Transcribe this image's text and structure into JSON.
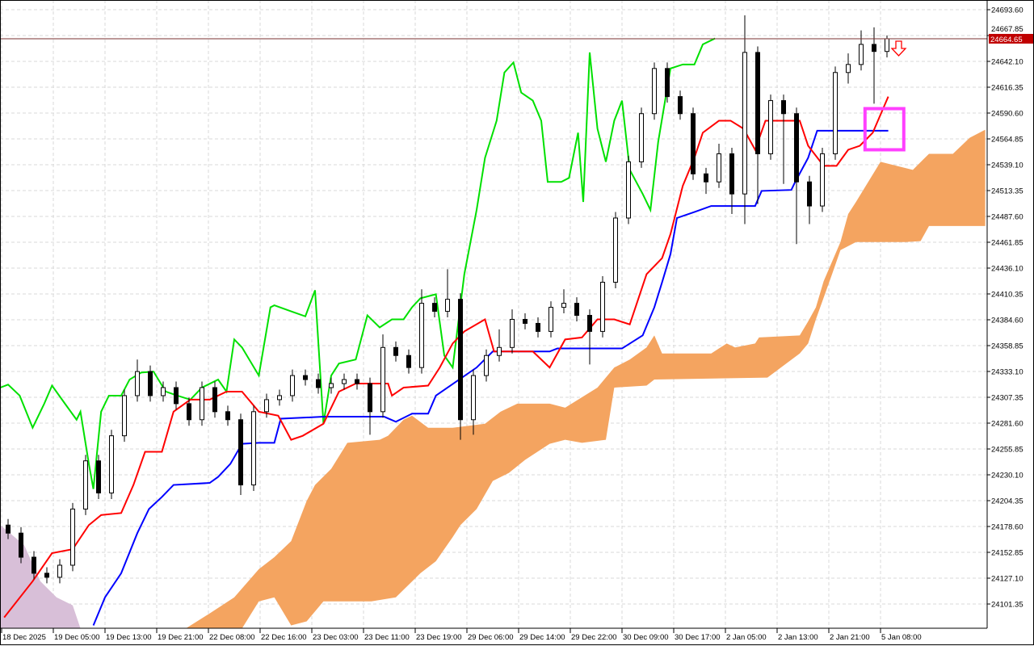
{
  "chart_data": {
    "type": "candlestick",
    "symbol_price_label": "24664.65",
    "price_line_value": 24664.65,
    "y_ticks": [
      "24693.60",
      "24667.85",
      "24642.10",
      "24616.35",
      "24590.60",
      "24564.85",
      "24539.10",
      "24513.35",
      "24487.60",
      "24461.85",
      "24436.10",
      "24410.35",
      "24384.60",
      "24358.85",
      "24333.10",
      "24307.35",
      "24281.60",
      "24255.85",
      "24230.10",
      "24204.35",
      "24178.60",
      "24152.85",
      "24127.10",
      "24101.35"
    ],
    "x_ticks": [
      "18 Dec 2025",
      "19 Dec 05:00",
      "19 Dec 13:00",
      "19 Dec 21:00",
      "22 Dec 08:00",
      "22 Dec 16:00",
      "23 Dec 03:00",
      "23 Dec 11:00",
      "23 Dec 19:00",
      "29 Dec 06:00",
      "29 Dec 14:00",
      "29 Dec 22:00",
      "30 Dec 09:00",
      "30 Dec 17:00",
      "2 Jan 05:00",
      "2 Jan 13:00",
      "2 Jan 21:00",
      "5 Jan 08:00"
    ],
    "ylim": [
      24077,
      24704
    ],
    "grid": true,
    "colors": {
      "bull_fill": "#ffffff",
      "bear_fill": "#000000",
      "tenkan": "#ff0000",
      "kijun": "#0000ff",
      "chikou": "#00e000",
      "cloud_bull": "#f4a460",
      "cloud_bear": "#d8bfd8",
      "price_label_bg": "#c00000",
      "highlight_box": "#ff40ff",
      "signal_arrow": "#ff0000"
    },
    "candles_ohlc": [
      [
        24180,
        24186,
        24166,
        24172
      ],
      [
        24172,
        24178,
        24142,
        24148
      ],
      [
        24148,
        24154,
        24126,
        24132
      ],
      [
        24132,
        24138,
        24122,
        24128
      ],
      [
        24128,
        24146,
        24122,
        24140
      ],
      [
        24140,
        24202,
        24134,
        24196
      ],
      [
        24196,
        24250,
        24190,
        24244
      ],
      [
        24244,
        24250,
        24206,
        24212
      ],
      [
        24212,
        24275,
        24206,
        24269
      ],
      [
        24269,
        24315,
        24263,
        24309
      ],
      [
        24309,
        24345,
        24303,
        24333
      ],
      [
        24333,
        24339,
        24303,
        24309
      ],
      [
        24309,
        24323,
        24303,
        24317
      ],
      [
        24317,
        24323,
        24295,
        24301
      ],
      [
        24301,
        24307,
        24279,
        24285
      ],
      [
        24285,
        24323,
        24279,
        24317
      ],
      [
        24317,
        24323,
        24287,
        24293
      ],
      [
        24293,
        24299,
        24279,
        24285
      ],
      [
        24285,
        24291,
        24210,
        24220
      ],
      [
        24220,
        24299,
        24214,
        24293
      ],
      [
        24293,
        24311,
        24287,
        24305
      ],
      [
        24305,
        24315,
        24299,
        24309
      ],
      [
        24309,
        24335,
        24303,
        24329
      ],
      [
        24329,
        24335,
        24319,
        24325
      ],
      [
        24325,
        24331,
        24311,
        24317
      ],
      [
        24317,
        24327,
        24311,
        24321
      ],
      [
        24321,
        24331,
        24315,
        24325
      ],
      [
        24325,
        24331,
        24315,
        24321
      ],
      [
        24321,
        24327,
        24270,
        24293
      ],
      [
        24293,
        24370,
        24287,
        24357
      ],
      [
        24357,
        24363,
        24343,
        24349
      ],
      [
        24349,
        24355,
        24331,
        24337
      ],
      [
        24337,
        24415,
        24331,
        24401
      ],
      [
        24401,
        24407,
        24387,
        24393
      ],
      [
        24393,
        24435,
        24387,
        24405
      ],
      [
        24405,
        24411,
        24265,
        24285
      ],
      [
        24285,
        24335,
        24270,
        24329
      ],
      [
        24329,
        24355,
        24323,
        24349
      ],
      [
        24349,
        24375,
        24343,
        24357
      ],
      [
        24357,
        24395,
        24351,
        24385
      ],
      [
        24385,
        24391,
        24375,
        24381
      ],
      [
        24381,
        24387,
        24367,
        24373
      ],
      [
        24373,
        24403,
        24367,
        24397
      ],
      [
        24397,
        24415,
        24391,
        24401
      ],
      [
        24401,
        24407,
        24383,
        24389
      ],
      [
        24389,
        24395,
        24340,
        24373
      ],
      [
        24373,
        24428,
        24367,
        24422
      ],
      [
        24422,
        24492,
        24416,
        24486
      ],
      [
        24486,
        24548,
        24480,
        24542
      ],
      [
        24542,
        24596,
        24536,
        24590
      ],
      [
        24590,
        24641,
        24584,
        24635
      ],
      [
        24635,
        24641,
        24601,
        24607
      ],
      [
        24607,
        24613,
        24584,
        24590
      ],
      [
        24590,
        24596,
        24524,
        24530
      ],
      [
        24530,
        24536,
        24510,
        24522
      ],
      [
        24522,
        24560,
        24516,
        24550
      ],
      [
        24550,
        24556,
        24490,
        24510
      ],
      [
        24510,
        24688,
        24480,
        24651
      ],
      [
        24651,
        24657,
        24500,
        24550
      ],
      [
        24550,
        24609,
        24544,
        24603
      ],
      [
        24603,
        24609,
        24520,
        24590
      ],
      [
        24590,
        24596,
        24460,
        24522
      ],
      [
        24522,
        24528,
        24480,
        24498
      ],
      [
        24498,
        24556,
        24492,
        24550
      ],
      [
        24550,
        24637,
        24544,
        24631
      ],
      [
        24631,
        24650,
        24620,
        24639
      ],
      [
        24639,
        24673,
        24633,
        24659
      ],
      [
        24659,
        24676,
        24600,
        24652
      ],
      [
        24652,
        24668,
        24646,
        24664.65
      ]
    ],
    "tenkan_sen": [
      [
        -0.3,
        24088
      ],
      [
        1.9,
        24124
      ],
      [
        3.4,
        24152
      ],
      [
        5,
        24156
      ],
      [
        6.25,
        24180
      ],
      [
        7.2,
        24190
      ],
      [
        8.75,
        24192
      ],
      [
        9.7,
        24220
      ],
      [
        10.6,
        24253
      ],
      [
        11.9,
        24253
      ],
      [
        12.8,
        24293
      ],
      [
        14.1,
        24305
      ],
      [
        15.6,
        24305
      ],
      [
        16.9,
        24313
      ],
      [
        18.1,
        24313
      ],
      [
        19.4,
        24293
      ],
      [
        20.9,
        24289
      ],
      [
        21.9,
        24265
      ],
      [
        22.8,
        24269
      ],
      [
        24.4,
        24281
      ],
      [
        25.6,
        24313
      ],
      [
        26.9,
        24321
      ],
      [
        29.4,
        24321
      ],
      [
        29.7,
        24309
      ],
      [
        30.6,
        24317
      ],
      [
        32.5,
        24319
      ],
      [
        33.4,
        24337
      ],
      [
        34.4,
        24361
      ],
      [
        35.3,
        24373
      ],
      [
        36.9,
        24385
      ],
      [
        37.6,
        24353
      ],
      [
        40.6,
        24353
      ],
      [
        41.9,
        24337
      ],
      [
        43.1,
        24365
      ],
      [
        44.4,
        24367
      ],
      [
        45.6,
        24385
      ],
      [
        46.9,
        24385
      ],
      [
        48.1,
        24380
      ],
      [
        49.4,
        24430
      ],
      [
        50.6,
        24446
      ],
      [
        51.25,
        24470
      ],
      [
        52.2,
        24518
      ],
      [
        53.1,
        24546
      ],
      [
        53.75,
        24571
      ],
      [
        55,
        24583
      ],
      [
        55.9,
        24583
      ],
      [
        56.9,
        24575
      ],
      [
        57.8,
        24554
      ],
      [
        58.6,
        24583
      ],
      [
        61.25,
        24583
      ],
      [
        61.9,
        24558
      ],
      [
        63.1,
        24538
      ],
      [
        64.1,
        24538
      ],
      [
        65,
        24554
      ],
      [
        65.9,
        24558
      ],
      [
        66.9,
        24571
      ],
      [
        68.1,
        24607
      ]
    ],
    "kijun_sen": [
      [
        6.6,
        24080
      ],
      [
        7.5,
        24108
      ],
      [
        8.75,
        24132
      ],
      [
        10,
        24172
      ],
      [
        10.9,
        24196
      ],
      [
        11.9,
        24208
      ],
      [
        12.8,
        24220
      ],
      [
        15.6,
        24222
      ],
      [
        16.25,
        24228
      ],
      [
        17.2,
        24241
      ],
      [
        18.1,
        24261
      ],
      [
        19.4,
        24262
      ],
      [
        20.6,
        24262
      ],
      [
        21.1,
        24286
      ],
      [
        24.4,
        24288
      ],
      [
        29.1,
        24288
      ],
      [
        30,
        24283
      ],
      [
        31.25,
        24291
      ],
      [
        32.5,
        24291
      ],
      [
        33.1,
        24309
      ],
      [
        36.25,
        24337
      ],
      [
        37.5,
        24353
      ],
      [
        41.9,
        24353
      ],
      [
        42.5,
        24356
      ],
      [
        47.5,
        24356
      ],
      [
        49.1,
        24369
      ],
      [
        50,
        24397
      ],
      [
        50.6,
        24422
      ],
      [
        51.25,
        24450
      ],
      [
        51.75,
        24486
      ],
      [
        53.1,
        24492
      ],
      [
        54.4,
        24498
      ],
      [
        57.8,
        24498
      ],
      [
        58.3,
        24513
      ],
      [
        60.6,
        24514
      ],
      [
        60.9,
        24522
      ],
      [
        61.9,
        24546
      ],
      [
        62.6,
        24573
      ],
      [
        68.1,
        24573
      ]
    ],
    "chikou_span": [
      [
        -0.6,
        24317
      ],
      [
        0,
        24320
      ],
      [
        0.9,
        24309
      ],
      [
        1.9,
        24277
      ],
      [
        2.8,
        24301
      ],
      [
        3.4,
        24319
      ],
      [
        4.4,
        24301
      ],
      [
        5.3,
        24285
      ],
      [
        5.6,
        24293
      ],
      [
        6.25,
        24241
      ],
      [
        6.6,
        24216
      ],
      [
        7.2,
        24293
      ],
      [
        7.8,
        24309
      ],
      [
        8.75,
        24309
      ],
      [
        9.4,
        24325
      ],
      [
        10.3,
        24332
      ],
      [
        11.25,
        24333
      ],
      [
        12.2,
        24313
      ],
      [
        13.1,
        24309
      ],
      [
        14.1,
        24305
      ],
      [
        15,
        24317
      ],
      [
        16.25,
        24325
      ],
      [
        16.9,
        24313
      ],
      [
        17.5,
        24365
      ],
      [
        18.1,
        24357
      ],
      [
        19.4,
        24329
      ],
      [
        20.3,
        24397
      ],
      [
        20.6,
        24399
      ],
      [
        21.9,
        24393
      ],
      [
        23,
        24388
      ],
      [
        23.75,
        24414
      ],
      [
        24.4,
        24281
      ],
      [
        25,
        24329
      ],
      [
        25.6,
        24341
      ],
      [
        26.9,
        24345
      ],
      [
        27.8,
        24389
      ],
      [
        28.75,
        24377
      ],
      [
        29.7,
        24385
      ],
      [
        30.6,
        24385
      ],
      [
        31.25,
        24397
      ],
      [
        31.9,
        24406
      ],
      [
        33.1,
        24410
      ],
      [
        33.75,
        24349
      ],
      [
        34.4,
        24337
      ],
      [
        35.3,
        24430
      ],
      [
        36.25,
        24494
      ],
      [
        36.9,
        24546
      ],
      [
        37.8,
        24583
      ],
      [
        38.4,
        24631
      ],
      [
        39.1,
        24641
      ],
      [
        39.7,
        24611
      ],
      [
        40.6,
        24603
      ],
      [
        41.25,
        24583
      ],
      [
        41.75,
        24522
      ],
      [
        42.8,
        24522
      ],
      [
        43.4,
        24526
      ],
      [
        44.1,
        24571
      ],
      [
        44.5,
        24502
      ],
      [
        45,
        24651
      ],
      [
        45.6,
        24575
      ],
      [
        46.25,
        24542
      ],
      [
        46.9,
        24583
      ],
      [
        47.5,
        24603
      ],
      [
        48.1,
        24534
      ],
      [
        49.1,
        24510
      ],
      [
        49.7,
        24494
      ],
      [
        50.3,
        24562
      ],
      [
        51.25,
        24635
      ],
      [
        52.2,
        24639
      ],
      [
        53.1,
        24639
      ],
      [
        53.75,
        24659
      ],
      [
        54.7,
        24665
      ]
    ],
    "cloud_upper": [
      [
        13.75,
        24077
      ],
      [
        15.6,
        24092
      ],
      [
        17.5,
        24108
      ],
      [
        19.4,
        24136
      ],
      [
        20.6,
        24148
      ],
      [
        21.9,
        24164
      ],
      [
        23.1,
        24204
      ],
      [
        23.75,
        24220
      ],
      [
        25,
        24236
      ],
      [
        26.25,
        24262
      ],
      [
        28.75,
        24265
      ],
      [
        29.4,
        24269
      ],
      [
        30.6,
        24285
      ],
      [
        31.25,
        24289
      ],
      [
        32.5,
        24277
      ],
      [
        34.4,
        24277
      ],
      [
        36.9,
        24281
      ],
      [
        38.1,
        24293
      ],
      [
        39.4,
        24301
      ],
      [
        41.9,
        24301
      ],
      [
        43.1,
        24297
      ],
      [
        45.6,
        24317
      ],
      [
        46.9,
        24337
      ],
      [
        48.1,
        24345
      ],
      [
        49.4,
        24357
      ],
      [
        50,
        24369
      ],
      [
        50.6,
        24351
      ],
      [
        54.4,
        24351
      ],
      [
        55.6,
        24361
      ],
      [
        56.25,
        24357
      ],
      [
        57.8,
        24361
      ],
      [
        58.1,
        24367
      ],
      [
        61.25,
        24369
      ],
      [
        61.9,
        24383
      ],
      [
        62.5,
        24397
      ],
      [
        63.1,
        24423
      ],
      [
        64.4,
        24462
      ],
      [
        65,
        24490
      ],
      [
        65.6,
        24502
      ],
      [
        67.5,
        24542
      ],
      [
        68.75,
        24538
      ],
      [
        70,
        24534
      ],
      [
        71.25,
        24550
      ],
      [
        73.1,
        24550
      ],
      [
        74.4,
        24566
      ],
      [
        75.6,
        24574
      ]
    ],
    "cloud_lower": [
      [
        13.75,
        24077
      ],
      [
        18.1,
        24077
      ],
      [
        19.4,
        24104
      ],
      [
        20.6,
        24108
      ],
      [
        21.9,
        24080
      ],
      [
        23.1,
        24084
      ],
      [
        24.4,
        24104
      ],
      [
        28.1,
        24104
      ],
      [
        30,
        24108
      ],
      [
        31.9,
        24132
      ],
      [
        33.1,
        24144
      ],
      [
        34.4,
        24168
      ],
      [
        35,
        24180
      ],
      [
        36.25,
        24196
      ],
      [
        37.5,
        24224
      ],
      [
        38.75,
        24232
      ],
      [
        40,
        24245
      ],
      [
        41.9,
        24261
      ],
      [
        43.1,
        24265
      ],
      [
        44.4,
        24262
      ],
      [
        46.25,
        24265
      ],
      [
        46.9,
        24317
      ],
      [
        49.4,
        24319
      ],
      [
        50,
        24325
      ],
      [
        58.75,
        24327
      ],
      [
        61.25,
        24351
      ],
      [
        61.9,
        24361
      ],
      [
        62.5,
        24385
      ],
      [
        63.75,
        24430
      ],
      [
        64.4,
        24454
      ],
      [
        65.6,
        24462
      ],
      [
        67.5,
        24462
      ],
      [
        69.4,
        24462
      ],
      [
        70.6,
        24463
      ],
      [
        71.25,
        24478
      ],
      [
        75.6,
        24478
      ]
    ],
    "bear_cloud_upper": [
      [
        -0.6,
        24180
      ],
      [
        1.25,
        24160
      ],
      [
        2.5,
        24124
      ],
      [
        3.75,
        24108
      ],
      [
        5,
        24100
      ],
      [
        5.6,
        24077
      ]
    ],
    "bear_cloud_lower": [
      [
        -0.6,
        24077
      ],
      [
        5.6,
        24077
      ]
    ],
    "signal": "down-arrow",
    "highlight_box": {
      "from_index": 66.3,
      "to_index": 69.3,
      "price_high": 24595,
      "price_low": 24554
    }
  }
}
